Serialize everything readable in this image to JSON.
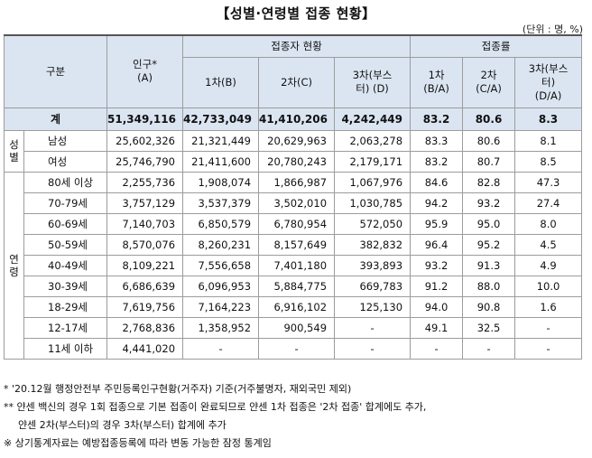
{
  "title": "【성별·연령별 접종 현황】",
  "unit": "(단위 : 명, %)",
  "header": {
    "category": "구분",
    "population_l1": "인구*",
    "population_l2": "(A)",
    "vaccinated": "접종자 현황",
    "first": "1차(B)",
    "second": "2차(C)",
    "third_l1": "3차(부스",
    "third_l2": "터) (D)",
    "rate": "접종률",
    "r1_l1": "1차",
    "r1_l2": "(B/A)",
    "r2_l1": "2차",
    "r2_l2": "(C/A)",
    "r3_l1": "3차(부스",
    "r3_l2": "터)",
    "r3_l3": "(D/A)"
  },
  "total": {
    "label": "계",
    "population": "51,349,116",
    "first": "42,733,049",
    "second": "41,410,206",
    "third": "4,242,449",
    "r1": "83.2",
    "r2": "80.6",
    "r3": "8.3"
  },
  "gender_group": {
    "c1": "성",
    "c2": "별"
  },
  "gender_rows": [
    {
      "label": "남성",
      "population": "25,602,326",
      "first": "21,321,449",
      "second": "20,629,963",
      "third": "2,063,278",
      "r1": "83.3",
      "r2": "80.6",
      "r3": "8.1"
    },
    {
      "label": "여성",
      "population": "25,746,790",
      "first": "21,411,600",
      "second": "20,780,243",
      "third": "2,179,171",
      "r1": "83.2",
      "r2": "80.7",
      "r3": "8.5"
    }
  ],
  "age_group": {
    "c1": "연",
    "c2": "령"
  },
  "age_rows": [
    {
      "label": "80세 이상",
      "population": "2,255,736",
      "first": "1,908,074",
      "second": "1,866,987",
      "third": "1,067,976",
      "r1": "84.6",
      "r2": "82.8",
      "r3": "47.3"
    },
    {
      "label": "70-79세",
      "population": "3,757,129",
      "first": "3,537,379",
      "second": "3,502,010",
      "third": "1,030,785",
      "r1": "94.2",
      "r2": "93.2",
      "r3": "27.4"
    },
    {
      "label": "60-69세",
      "population": "7,140,703",
      "first": "6,850,579",
      "second": "6,780,954",
      "third": "572,050",
      "r1": "95.9",
      "r2": "95.0",
      "r3": "8.0"
    },
    {
      "label": "50-59세",
      "population": "8,570,076",
      "first": "8,260,231",
      "second": "8,157,649",
      "third": "382,832",
      "r1": "96.4",
      "r2": "95.2",
      "r3": "4.5"
    },
    {
      "label": "40-49세",
      "population": "8,109,221",
      "first": "7,556,658",
      "second": "7,401,180",
      "third": "393,893",
      "r1": "93.2",
      "r2": "91.3",
      "r3": "4.9"
    },
    {
      "label": "30-39세",
      "population": "6,686,639",
      "first": "6,096,953",
      "second": "5,884,775",
      "third": "669,783",
      "r1": "91.2",
      "r2": "88.0",
      "r3": "10.0"
    },
    {
      "label": "18-29세",
      "population": "7,619,756",
      "first": "7,164,223",
      "second": "6,916,102",
      "third": "125,130",
      "r1": "94.0",
      "r2": "90.8",
      "r3": "1.6"
    },
    {
      "label": "12-17세",
      "population": "2,768,836",
      "first": "1,358,952",
      "second": "900,549",
      "third": "-",
      "r1": "49.1",
      "r2": "32.5",
      "r3": "-"
    },
    {
      "label": "11세 이하",
      "population": "4,441,020",
      "first": "-",
      "second": "-",
      "third": "-",
      "r1": "-",
      "r2": "-",
      "r3": "-"
    }
  ],
  "notes": [
    "* '20.12월 행정안전부 주민등록인구현황(거주자) 기준(거주불명자, 재외국민 제외)",
    "** 얀센 백신의 경우 1회 접종으로 기본 접종이 완료되므로 얀센 1차 접종은 '2차 접종' 합계에도 추가,",
    "    얀센 2차(부스터)의 경우 3차(부스터) 합계에 추가",
    "※ 상기통계자료는 예방접종등록에 따라 변동 가능한 잠정 통계임"
  ]
}
